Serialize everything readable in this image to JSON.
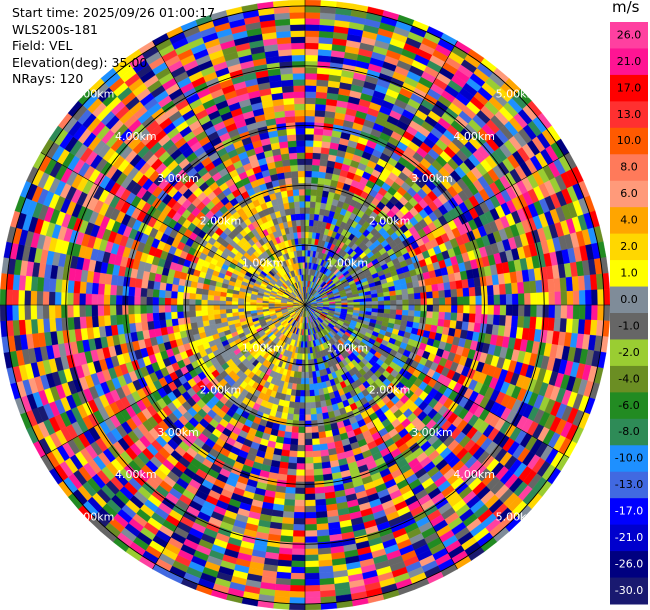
{
  "info": {
    "start_time": "Start time: 2025/09/26 01:00:17",
    "instrument": "WLS200s-181",
    "field": "Field: VEL",
    "elevation": "Elevation(deg): 35.00",
    "nrays": "NRays: 120"
  },
  "chart_data": {
    "type": "heatmap",
    "projection": "polar-ppi",
    "field": "VEL",
    "elevation_deg": 35.0,
    "nrays": 120,
    "range_ring_labels": [
      "1.00km",
      "2.00km",
      "3.00km",
      "4.00km",
      "5.00km"
    ],
    "range_rings_km": [
      1,
      2,
      3,
      4,
      5
    ],
    "max_range_km": 5.1,
    "near_field_pattern": {
      "positive_bias_sector_deg": [
        -80,
        180
      ],
      "negative_bias_sector_deg": [
        0,
        180
      ],
      "coherent_range_km": 2.0
    },
    "colorbar": {
      "unit": "m/s",
      "ticks": [
        "26.0",
        "21.0",
        "17.0",
        "13.0",
        "10.0",
        "8.0",
        "6.0",
        "4.0",
        "2.0",
        "1.0",
        "0.0",
        "-1.0",
        "-2.0",
        "-4.0",
        "-6.0",
        "-8.0",
        "-10.0",
        "-13.0",
        "-17.0",
        "-21.0",
        "-26.0",
        "-30.0"
      ],
      "colors": [
        "#ff40a0",
        "#ff1493",
        "#ff0000",
        "#ff3030",
        "#ff5a00",
        "#ff7a5a",
        "#ff9a7a",
        "#ffa500",
        "#ffd700",
        "#ffff00",
        "#7f8c99",
        "#666666",
        "#9acd32",
        "#6b8e23",
        "#228b22",
        "#2e8b57",
        "#1e90ff",
        "#4169e1",
        "#0000ff",
        "#0000cd",
        "#000080",
        "#191970"
      ]
    }
  }
}
